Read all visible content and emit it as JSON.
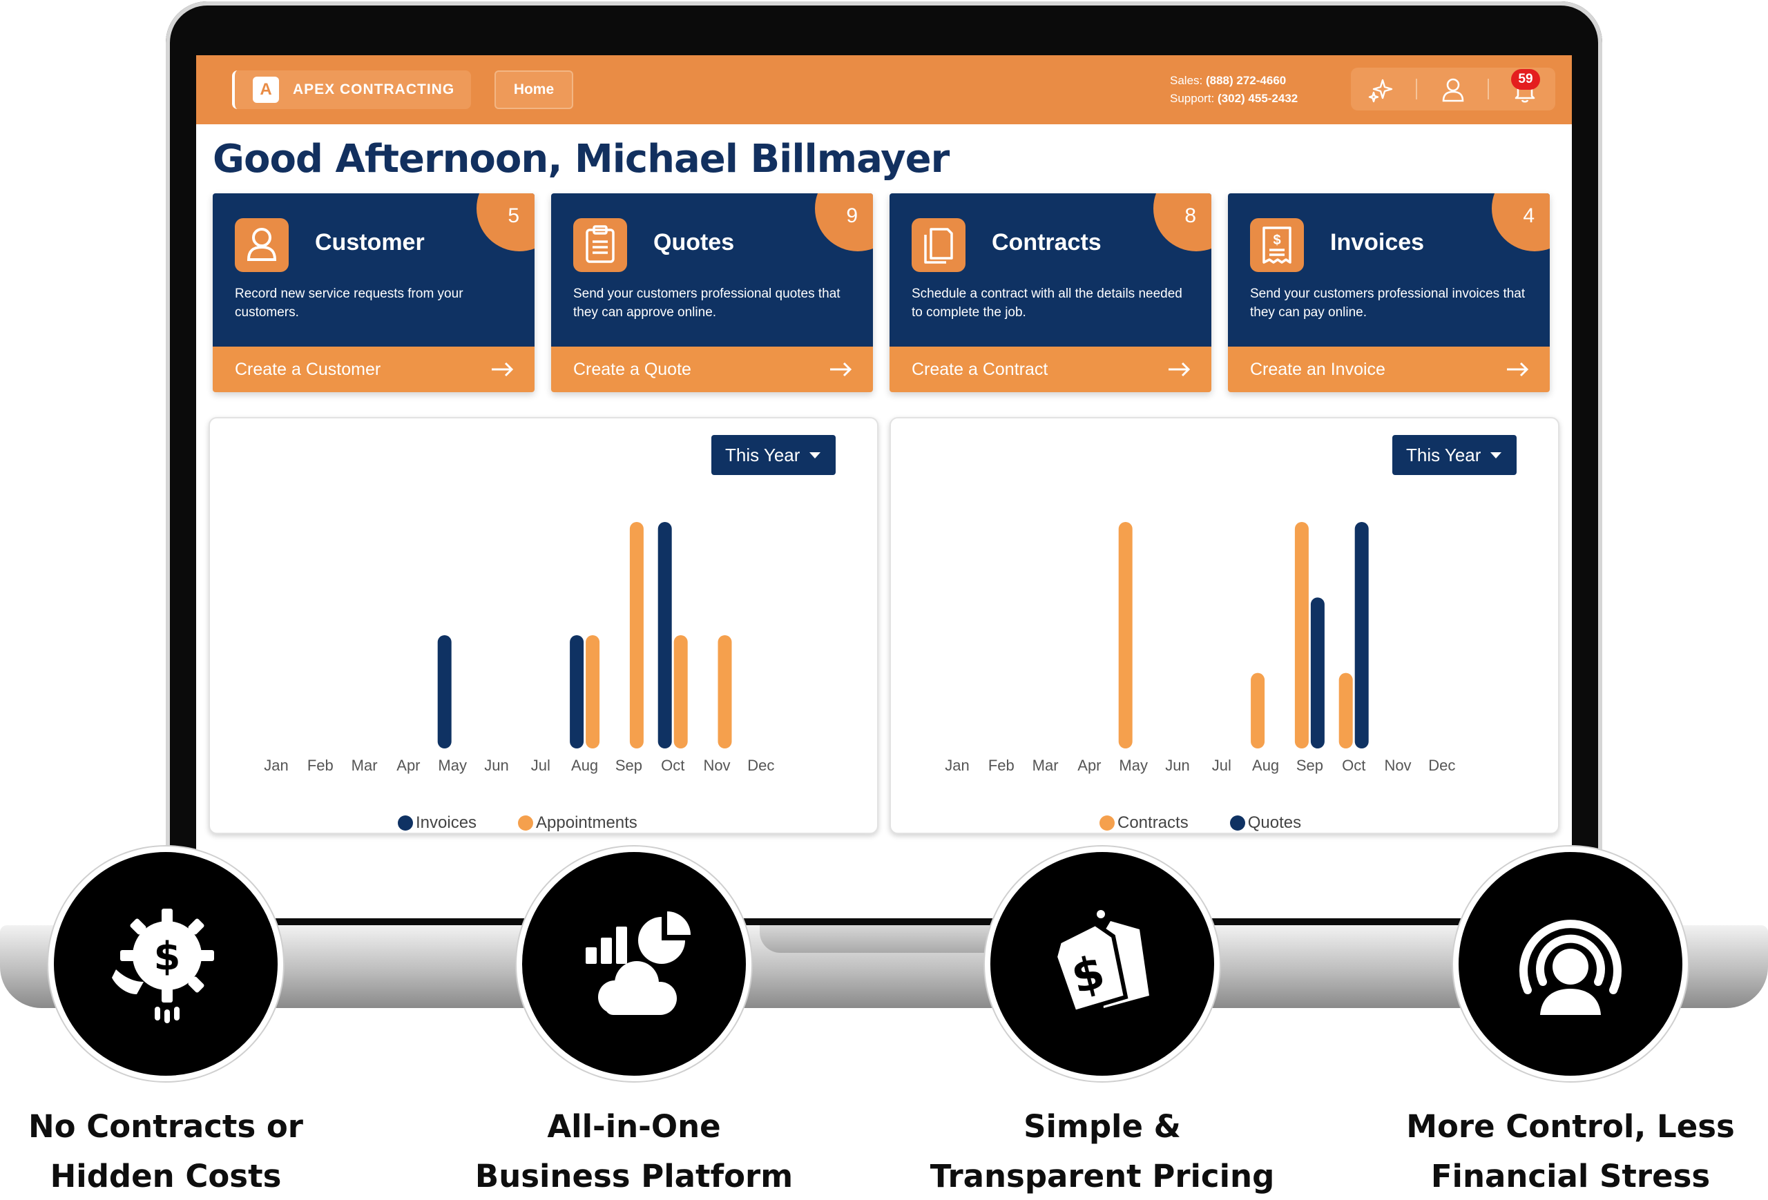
{
  "header": {
    "brand_logo_letter": "A",
    "brand_name": "APEX CONTRACTING",
    "home_label": "Home",
    "sales_label": "Sales:",
    "sales_phone": "(888) 272-4660",
    "support_label": "Support:",
    "support_phone": "(302) 455-2432",
    "notifications_count": "59",
    "icons": [
      "sparkle-icon",
      "user-icon",
      "bell-icon"
    ]
  },
  "greeting": "Good Afternoon, Michael Billmayer",
  "cards": [
    {
      "title": "Customer",
      "count": "5",
      "description": "Record new service requests from your customers.",
      "action": "Create a Customer",
      "icon": "user-icon"
    },
    {
      "title": "Quotes",
      "count": "9",
      "description": "Send your customers professional quotes that they can approve online.",
      "action": "Create a Quote",
      "icon": "clipboard-icon"
    },
    {
      "title": "Contracts",
      "count": "8",
      "description": "Schedule a contract with all the details needed to complete the job.",
      "action": "Create a Contract",
      "icon": "documents-icon"
    },
    {
      "title": "Invoices",
      "count": "4",
      "description": "Send your customers professional invoices that they can pay online.",
      "action": "Create an Invoice",
      "icon": "invoice-icon"
    }
  ],
  "colors": {
    "navy": "#0f3263",
    "orange": "#e98c45",
    "bar_orange": "#f5a04d"
  },
  "chart_data": [
    {
      "type": "bar",
      "filter_label": "This Year",
      "categories": [
        "Jan",
        "Feb",
        "Mar",
        "Apr",
        "May",
        "Jun",
        "Jul",
        "Aug",
        "Sep",
        "Oct",
        "Nov",
        "Dec"
      ],
      "series": [
        {
          "name": "Invoices",
          "color": "#0f3263",
          "values": [
            0,
            0,
            0,
            0,
            1,
            0,
            0,
            1,
            0,
            2,
            0,
            0
          ]
        },
        {
          "name": "Appointments",
          "color": "#f5a04d",
          "values": [
            0,
            0,
            0,
            0,
            0,
            0,
            0,
            1,
            2,
            1,
            1,
            0
          ]
        }
      ],
      "ylim": [
        0,
        2
      ],
      "legend": "bottom",
      "grid": false
    },
    {
      "type": "bar",
      "filter_label": "This Year",
      "categories": [
        "Jan",
        "Feb",
        "Mar",
        "Apr",
        "May",
        "Jun",
        "Jul",
        "Aug",
        "Sep",
        "Oct",
        "Nov",
        "Dec"
      ],
      "series": [
        {
          "name": "Contracts",
          "color": "#f5a04d",
          "values": [
            0,
            0,
            0,
            0,
            6,
            0,
            0,
            2,
            6,
            2,
            0,
            0
          ]
        },
        {
          "name": "Quotes",
          "color": "#0f3263",
          "values": [
            0,
            0,
            0,
            0,
            0,
            0,
            0,
            0,
            4,
            6,
            0,
            0
          ]
        }
      ],
      "ylim": [
        0,
        6
      ],
      "legend": "bottom",
      "grid": false
    }
  ],
  "features": [
    {
      "line1": "No Contracts or",
      "line2": "Hidden Costs",
      "icon": "gear-dollar-icon"
    },
    {
      "line1": "All-in-One",
      "line2": "Business Platform",
      "icon": "chart-cloud-icon"
    },
    {
      "line1": "Simple &",
      "line2": "Transparent Pricing",
      "icon": "price-tag-icon"
    },
    {
      "line1": "More Control, Less",
      "line2": "Financial Stress",
      "icon": "user-signal-icon"
    }
  ]
}
